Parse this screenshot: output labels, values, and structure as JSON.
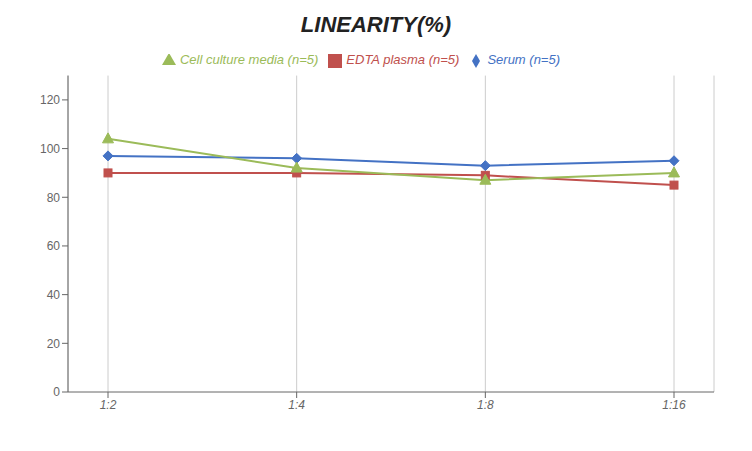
{
  "chart_data": {
    "type": "line",
    "title": "LINEARITY(%)",
    "categories": [
      "1:2",
      "1:4",
      "1:8",
      "1:16"
    ],
    "series": [
      {
        "name": "Serum (n=5)",
        "color": "#4472C4",
        "marker": "diamond",
        "values": [
          97,
          96,
          93,
          95
        ]
      },
      {
        "name": "EDTA plasma (n=5)",
        "color": "#C0504D",
        "marker": "square",
        "values": [
          90,
          90,
          89,
          85
        ]
      },
      {
        "name": "Cell culture media (n=5)",
        "color": "#9BBB59",
        "marker": "triangle",
        "values": [
          104,
          92,
          87,
          90
        ]
      }
    ],
    "ylim": [
      0,
      130
    ],
    "yticks": [
      0,
      20,
      40,
      60,
      80,
      100,
      120
    ],
    "grid": "x",
    "legend": "top"
  }
}
